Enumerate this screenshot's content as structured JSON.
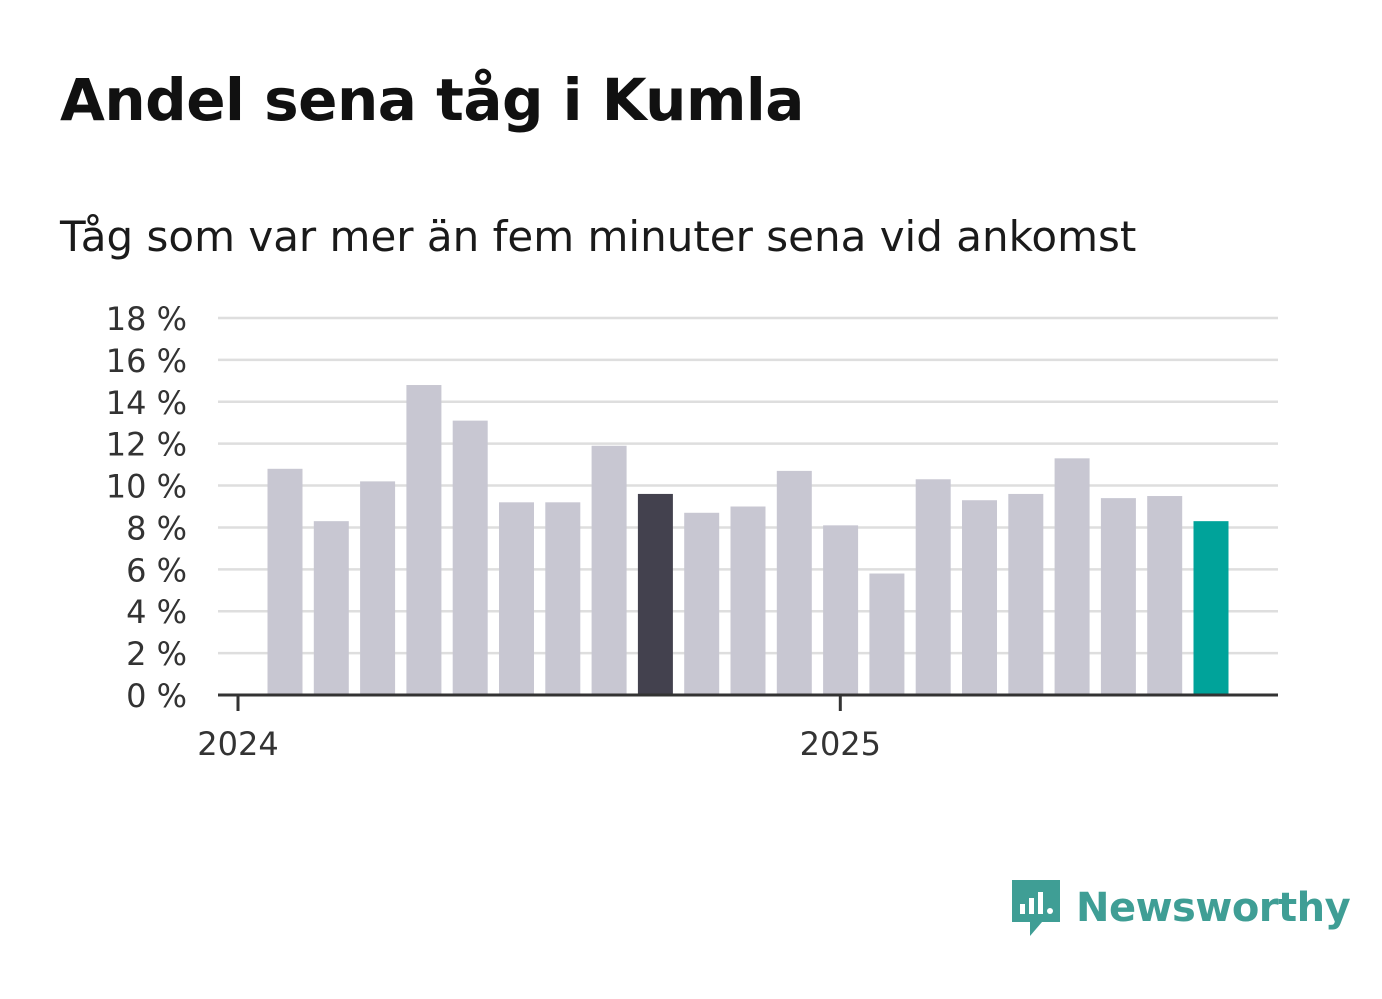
{
  "title": "Andel sena tåg i Kumla",
  "subtitle": "Tåg som var mer än fem minuter sena vid ankomst",
  "brand": {
    "name": "Newsworthy",
    "color": "#3f9e95",
    "icon": "newsworthy-logo-icon"
  },
  "chart_data": {
    "type": "bar",
    "title": "Andel sena tåg i Kumla",
    "subtitle": "Tåg som var mer än fem minuter sena vid ankomst",
    "xlabel": "",
    "ylabel": "",
    "ylim": [
      0,
      18
    ],
    "yticks": [
      0,
      2,
      4,
      6,
      8,
      10,
      12,
      14,
      16,
      18
    ],
    "ytick_suffix": " %",
    "x_tick_labels": [
      {
        "label": "2024",
        "month_index": 0
      },
      {
        "label": "2025",
        "month_index": 12
      }
    ],
    "categories": [
      "2024-01",
      "2024-02",
      "2024-03",
      "2024-04",
      "2024-05",
      "2024-06",
      "2024-07",
      "2024-08",
      "2024-09",
      "2024-10",
      "2024-11",
      "2024-12",
      "2025-01",
      "2025-02",
      "2025-03",
      "2025-04",
      "2025-05",
      "2025-06",
      "2025-07",
      "2025-08",
      "2025-09"
    ],
    "values": [
      10.8,
      8.3,
      10.2,
      14.8,
      13.1,
      9.2,
      9.2,
      11.9,
      9.6,
      8.7,
      9.0,
      10.7,
      8.1,
      5.8,
      10.3,
      9.3,
      9.6,
      11.3,
      9.4,
      9.5,
      8.3
    ],
    "highlight": {
      "2024-09": "#43414e",
      "2025-09": "#00a39a"
    },
    "default_color": "#c8c7d2",
    "grid": true
  }
}
